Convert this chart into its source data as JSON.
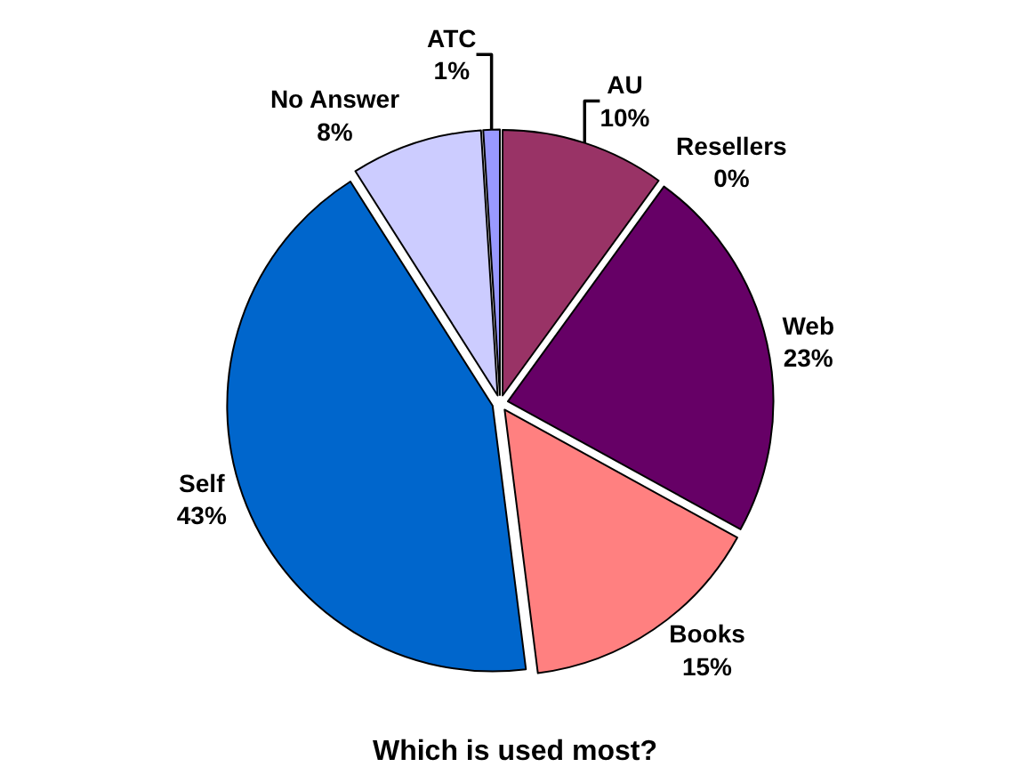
{
  "chart_data": {
    "type": "pie",
    "title": "Which is used most?",
    "categories": [
      "AU",
      "Resellers",
      "Web",
      "Books",
      "Self",
      "No Answer",
      "ATC"
    ],
    "values": [
      10,
      0,
      23,
      15,
      43,
      8,
      1
    ],
    "value_labels": [
      "10%",
      "0%",
      "23%",
      "15%",
      "43%",
      "8%",
      "1%"
    ],
    "colors": [
      "#993366",
      "#669999",
      "#660066",
      "#ff8080",
      "#0066cc",
      "#ccccff",
      "#9999ff"
    ],
    "legend": false
  }
}
